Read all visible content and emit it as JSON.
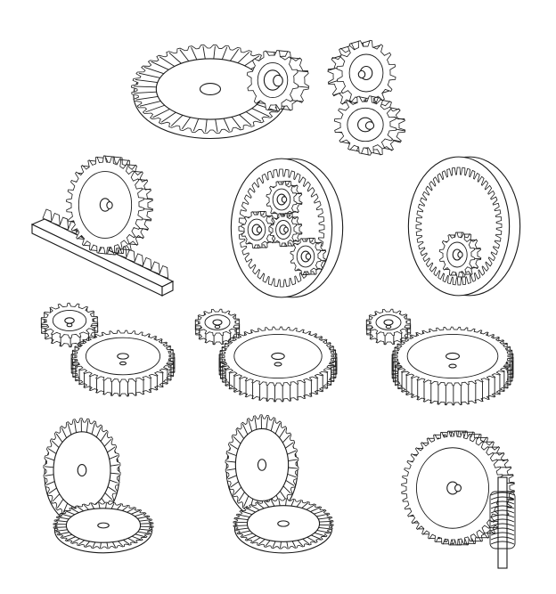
{
  "colors": {
    "line": "#1a1a1a",
    "background": "#ffffff",
    "fill": "#ffffff"
  },
  "gear_sets": [
    {
      "id": "bevel-ring-pinion",
      "kind": "bevel ring gear with pinion"
    },
    {
      "id": "crossed-helical",
      "kind": "crossed helical gears"
    },
    {
      "id": "rack-pinion",
      "kind": "rack and pinion"
    },
    {
      "id": "planetary",
      "kind": "planetary gear set"
    },
    {
      "id": "internal-ring",
      "kind": "internal ring gear with pinion"
    },
    {
      "id": "spur-pair",
      "kind": "spur gear pair"
    },
    {
      "id": "helical-pair",
      "kind": "helical gear pair"
    },
    {
      "id": "herringbone-pair",
      "kind": "double helical gear pair"
    },
    {
      "id": "bevel-pair-straight",
      "kind": "straight bevel gear pair"
    },
    {
      "id": "bevel-pair-spiral",
      "kind": "spiral bevel gear pair"
    },
    {
      "id": "worm-drive",
      "kind": "worm gear drive"
    }
  ]
}
